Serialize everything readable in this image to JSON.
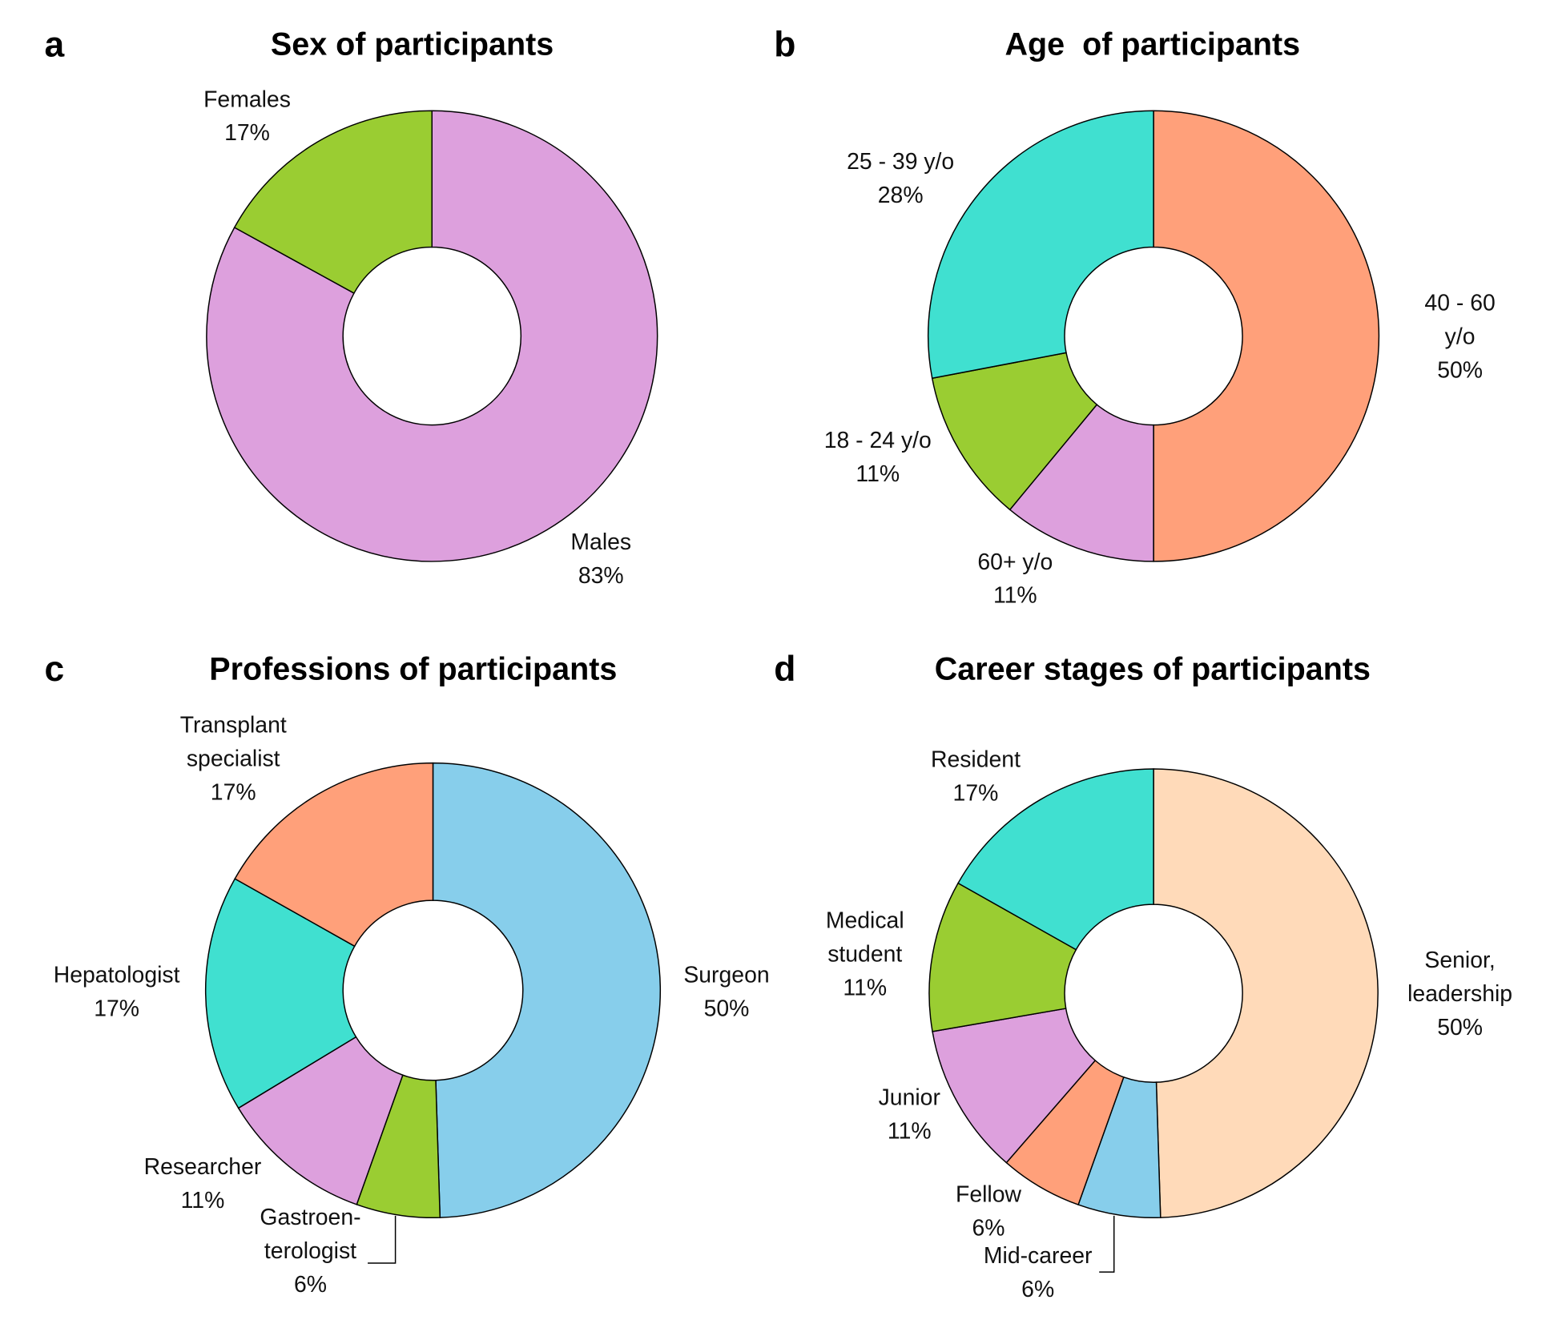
{
  "chart_data": [
    {
      "type": "pie",
      "panel_label": "a",
      "title": "Sex of participants",
      "categories": [
        "Males",
        "Females"
      ],
      "values": [
        83,
        17
      ],
      "value_labels": [
        "83%",
        "17%"
      ],
      "colors": [
        "#dda0dd",
        "#9acd32"
      ],
      "donut": true
    },
    {
      "type": "pie",
      "panel_label": "b",
      "title": "Age  of participants",
      "categories": [
        "40 - 60 y/o",
        "60+ y/o",
        "18 - 24 y/o",
        "25 - 39 y/o"
      ],
      "values": [
        50,
        11,
        11,
        28
      ],
      "value_labels": [
        "50%",
        "11%",
        "11%",
        "28%"
      ],
      "colors": [
        "#ffa07a",
        "#dda0dd",
        "#9acd32",
        "#40e0d0"
      ],
      "donut": true
    },
    {
      "type": "pie",
      "panel_label": "c",
      "title": "Professions of participants",
      "categories": [
        "Surgeon",
        "Gastroen-\nterologist",
        "Researcher",
        "Hepatologist",
        "Transplant\nspecialist"
      ],
      "values": [
        50,
        6,
        11,
        17,
        17
      ],
      "value_labels": [
        "50%",
        "6%",
        "11%",
        "17%",
        "17%"
      ],
      "colors": [
        "#87ceeb",
        "#9acd32",
        "#dda0dd",
        "#40e0d0",
        "#ffa07a"
      ],
      "donut": true
    },
    {
      "type": "pie",
      "panel_label": "d",
      "title": "Career stages of participants",
      "categories": [
        "Senior,\nleadership",
        "Mid-career",
        "Fellow",
        "Junior",
        "Medical\nstudent",
        "Resident"
      ],
      "values": [
        50,
        6,
        6,
        11,
        11,
        17
      ],
      "value_labels": [
        "50%",
        "6%",
        "6%",
        "11%",
        "11%",
        "17%"
      ],
      "colors": [
        "#ffdab9",
        "#87ceeb",
        "#ffa07a",
        "#dda0dd",
        "#9acd32",
        "#40e0d0"
      ],
      "donut": true
    }
  ]
}
